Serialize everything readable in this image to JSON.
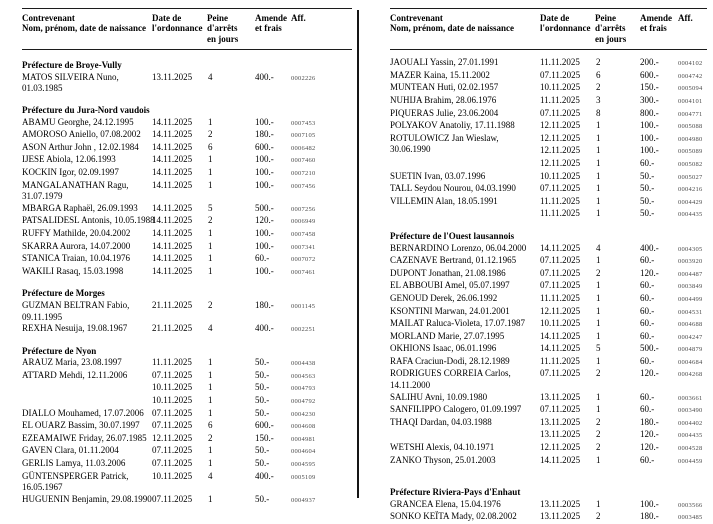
{
  "document": {
    "header": {
      "col_contrevenant_line1": "Contrevenant",
      "col_contrevenant_line2": "Nom, prénom, date de naissance",
      "col_date_line1": "Date de",
      "col_date_line2": "l'ordonnance",
      "col_peine_line1": "Peine",
      "col_peine_line2": "d'arrêts",
      "col_peine_line3": "en jours",
      "col_amende_line1": "Amende",
      "col_amende_line2": "et frais",
      "col_aff": "Aff."
    },
    "pages": [
      {
        "blocks": [
          {
            "title": "Préfecture de Broye-Vully",
            "rows": [
              {
                "name": "MATOS SILVEIRA Nuno,",
                "name2": "01.03.1985",
                "entries": [
                  {
                    "date": "13.11.2025",
                    "days": "4",
                    "amount": "400.-",
                    "aff": "0002226"
                  }
                ]
              }
            ]
          },
          {
            "title": "Préfecture du Jura-Nord vaudois",
            "rows": [
              {
                "name": "ABAMU Georghe, 24.12.1995",
                "entries": [
                  {
                    "date": "14.11.2025",
                    "days": "1",
                    "amount": "100.-",
                    "aff": "0007453"
                  }
                ]
              },
              {
                "name": "AMOROSO Aniello, 07.08.2002",
                "entries": [
                  {
                    "date": "14.11.2025",
                    "days": "2",
                    "amount": "180.-",
                    "aff": "0007105"
                  }
                ]
              },
              {
                "name": "ASON Arthur John , 12.02.1984",
                "entries": [
                  {
                    "date": "14.11.2025",
                    "days": "6",
                    "amount": "600.-",
                    "aff": "0006482"
                  }
                ]
              },
              {
                "name": "IJESE Abiola, 12.06.1993",
                "entries": [
                  {
                    "date": "14.11.2025",
                    "days": "1",
                    "amount": "100.-",
                    "aff": "0007460"
                  }
                ]
              },
              {
                "name": "KOCKIN Igor, 02.09.1997",
                "entries": [
                  {
                    "date": "14.11.2025",
                    "days": "1",
                    "amount": "100.-",
                    "aff": "0007210"
                  }
                ]
              },
              {
                "name": "MANGALANATHAN Ragu,",
                "name2": "31.07.1979",
                "entries": [
                  {
                    "date": "14.11.2025",
                    "days": "1",
                    "amount": "100.-",
                    "aff": "0007456"
                  }
                ]
              },
              {
                "name": "MBARGA Raphaël, 26.09.1993",
                "entries": [
                  {
                    "date": "14.11.2025",
                    "days": "5",
                    "amount": "500.-",
                    "aff": "0007256"
                  }
                ]
              },
              {
                "name": "PATSALIDESL Antonis, 10.05.1988",
                "entries": [
                  {
                    "date": "14.11.2025",
                    "days": "2",
                    "amount": "120.-",
                    "aff": "0006949"
                  }
                ]
              },
              {
                "name": "RUFFY Mathilde, 20.04.2002",
                "entries": [
                  {
                    "date": "14.11.2025",
                    "days": "1",
                    "amount": "100.-",
                    "aff": "0007458"
                  }
                ]
              },
              {
                "name": "SKARRA Aurora, 14.07.2000",
                "entries": [
                  {
                    "date": "14.11.2025",
                    "days": "1",
                    "amount": "100.-",
                    "aff": "0007341"
                  }
                ]
              },
              {
                "name": "STANICA Traian, 10.04.1976",
                "entries": [
                  {
                    "date": "14.11.2025",
                    "days": "1",
                    "amount": "60.-",
                    "aff": "0007072"
                  }
                ]
              },
              {
                "name": "WAKILI Rasaq, 15.03.1998",
                "entries": [
                  {
                    "date": "14.11.2025",
                    "days": "1",
                    "amount": "100.-",
                    "aff": "0007461"
                  }
                ]
              }
            ]
          },
          {
            "title": "Préfecture de Morges",
            "rows": [
              {
                "name": "GUZMAN BELTRAN Fabio,",
                "name2": "09.11.1995",
                "entries": [
                  {
                    "date": "21.11.2025",
                    "days": "2",
                    "amount": "180.-",
                    "aff": "0001145"
                  }
                ]
              },
              {
                "name": "REXHA Nesuija, 19.08.1967",
                "entries": [
                  {
                    "date": "21.11.2025",
                    "days": "4",
                    "amount": "400.-",
                    "aff": "0002251"
                  }
                ]
              }
            ]
          },
          {
            "title": "Préfecture de Nyon",
            "rows": [
              {
                "name": "ARAUZ Maria, 23.08.1997",
                "entries": [
                  {
                    "date": "11.11.2025",
                    "days": "1",
                    "amount": "50.-",
                    "aff": "0004438"
                  }
                ]
              },
              {
                "name": "ATTARD Mehdi, 12.11.2006",
                "entries": [
                  {
                    "date": "07.11.2025",
                    "days": "1",
                    "amount": "50.-",
                    "aff": "0004563"
                  },
                  {
                    "date": "10.11.2025",
                    "days": "1",
                    "amount": "50.-",
                    "aff": "0004793"
                  },
                  {
                    "date": "10.11.2025",
                    "days": "1",
                    "amount": "50.-",
                    "aff": "0004792"
                  }
                ]
              },
              {
                "name": "DIALLO Mouhamed, 17.07.2006",
                "entries": [
                  {
                    "date": "07.11.2025",
                    "days": "1",
                    "amount": "50.-",
                    "aff": "0004230"
                  }
                ]
              },
              {
                "name": "EL OUARZ Bassim, 30.07.1997",
                "entries": [
                  {
                    "date": "07.11.2025",
                    "days": "6",
                    "amount": "600.-",
                    "aff": "0004608"
                  }
                ]
              },
              {
                "name": "EZEAMAIWE Friday, 26.07.1985",
                "entries": [
                  {
                    "date": "12.11.2025",
                    "days": "2",
                    "amount": "150.-",
                    "aff": "0004981"
                  }
                ]
              },
              {
                "name": "GAVEN Clara, 01.11.2004",
                "entries": [
                  {
                    "date": "07.11.2025",
                    "days": "1",
                    "amount": "50.-",
                    "aff": "0004604"
                  }
                ]
              },
              {
                "name": "GERLIS Lamya, 11.03.2006",
                "entries": [
                  {
                    "date": "07.11.2025",
                    "days": "1",
                    "amount": "50.-",
                    "aff": "0004595"
                  }
                ]
              },
              {
                "name": "GÜNTENSPERGER Patrick,",
                "name2": "16.05.1967",
                "entries": [
                  {
                    "date": "10.11.2025",
                    "days": "4",
                    "amount": "400.-",
                    "aff": "0005109"
                  }
                ]
              },
              {
                "name": "HUGUENIN Benjamin, 29.08.1990",
                "entries": [
                  {
                    "date": "07.11.2025",
                    "days": "1",
                    "amount": "50.-",
                    "aff": "0004937"
                  }
                ]
              }
            ]
          }
        ]
      },
      {
        "blocks": [
          {
            "title": "",
            "rows": [
              {
                "name": "JAOUALI Yassin, 27.01.1991",
                "entries": [
                  {
                    "date": "11.11.2025",
                    "days": "2",
                    "amount": "200.-",
                    "aff": "0004102"
                  }
                ]
              },
              {
                "name": "MAZER Kaina, 15.11.2002",
                "entries": [
                  {
                    "date": "07.11.2025",
                    "days": "6",
                    "amount": "600.-",
                    "aff": "0004742"
                  }
                ]
              },
              {
                "name": "MUNTEAN Huti, 02.02.1957",
                "entries": [
                  {
                    "date": "10.11.2025",
                    "days": "2",
                    "amount": "150.-",
                    "aff": "0005094"
                  }
                ]
              },
              {
                "name": "NUHIJA Brahim, 28.06.1976",
                "entries": [
                  {
                    "date": "11.11.2025",
                    "days": "3",
                    "amount": "300.-",
                    "aff": "0004101"
                  }
                ]
              },
              {
                "name": "PIQUERAS Julie, 23.06.2004",
                "entries": [
                  {
                    "date": "07.11.2025",
                    "days": "8",
                    "amount": "800.-",
                    "aff": "0004771"
                  }
                ]
              },
              {
                "name": "POLYAKOV Anatoliy, 17.11.1988",
                "entries": [
                  {
                    "date": "12.11.2025",
                    "days": "1",
                    "amount": "100.-",
                    "aff": "0005088"
                  }
                ]
              },
              {
                "name": "ROTULOWICZ Jan Wieslaw,",
                "name2": "30.06.1990",
                "entries": [
                  {
                    "date": "12.11.2025",
                    "days": "1",
                    "amount": "100.-",
                    "aff": "0004980"
                  },
                  {
                    "date": "12.11.2025",
                    "days": "1",
                    "amount": "100.-",
                    "aff": "0005089"
                  },
                  {
                    "date": "12.11.2025",
                    "days": "1",
                    "amount": "60.-",
                    "aff": "0005082"
                  }
                ]
              },
              {
                "name": "SUETIN Ivan, 03.07.1996",
                "entries": [
                  {
                    "date": "10.11.2025",
                    "days": "1",
                    "amount": "50.-",
                    "aff": "0005027"
                  }
                ]
              },
              {
                "name": "TALL Seydou Nourou, 04.03.1990",
                "entries": [
                  {
                    "date": "07.11.2025",
                    "days": "1",
                    "amount": "50.-",
                    "aff": "0004216"
                  }
                ]
              },
              {
                "name": "VILLEMIN Alan, 18.05.1991",
                "entries": [
                  {
                    "date": "11.11.2025",
                    "days": "1",
                    "amount": "50.-",
                    "aff": "0004429"
                  },
                  {
                    "date": "11.11.2025",
                    "days": "1",
                    "amount": "50.-",
                    "aff": "0004435"
                  }
                ]
              }
            ]
          },
          {
            "title": "Préfecture de l'Ouest lausannois",
            "rows": [
              {
                "name": "BERNARDINO Lorenzo, 06.04.2000",
                "entries": [
                  {
                    "date": "14.11.2025",
                    "days": "4",
                    "amount": "400.-",
                    "aff": "0004305"
                  }
                ]
              },
              {
                "name": "CAZENAVE Bertrand, 01.12.1965",
                "entries": [
                  {
                    "date": "07.11.2025",
                    "days": "1",
                    "amount": "60.-",
                    "aff": "0003920"
                  }
                ]
              },
              {
                "name": "DUPONT Jonathan, 21.08.1986",
                "entries": [
                  {
                    "date": "07.11.2025",
                    "days": "2",
                    "amount": "120.-",
                    "aff": "0004487"
                  }
                ]
              },
              {
                "name": "EL ABBOUBI Amel, 05.07.1997",
                "entries": [
                  {
                    "date": "07.11.2025",
                    "days": "1",
                    "amount": "60.-",
                    "aff": "0003849"
                  }
                ]
              },
              {
                "name": "GENOUD Derek, 26.06.1992",
                "entries": [
                  {
                    "date": "11.11.2025",
                    "days": "1",
                    "amount": "60.-",
                    "aff": "0004499"
                  }
                ]
              },
              {
                "name": "KSONTINI Marwan, 24.01.2001",
                "entries": [
                  {
                    "date": "12.11.2025",
                    "days": "1",
                    "amount": "60.-",
                    "aff": "0004531"
                  }
                ]
              },
              {
                "name": "MAILAT Raluca-Violeta, 17.07.1987",
                "entries": [
                  {
                    "date": "10.11.2025",
                    "days": "1",
                    "amount": "60.-",
                    "aff": "0004688"
                  }
                ]
              },
              {
                "name": "MORLAND Marie, 27.07.1995",
                "entries": [
                  {
                    "date": "14.11.2025",
                    "days": "1",
                    "amount": "60.-",
                    "aff": "0004247"
                  }
                ]
              },
              {
                "name": "OKHIONS Isaac, 06.01.1996",
                "entries": [
                  {
                    "date": "14.11.2025",
                    "days": "5",
                    "amount": "500.-",
                    "aff": "0004879"
                  }
                ]
              },
              {
                "name": "RAFA Craciun-Dodi, 28.12.1989",
                "entries": [
                  {
                    "date": "11.11.2025",
                    "days": "1",
                    "amount": "60.-",
                    "aff": "0004684"
                  }
                ]
              },
              {
                "name": "RODRIGUES CORREIA Carlos,",
                "name2": "14.11.2000",
                "entries": [
                  {
                    "date": "07.11.2025",
                    "days": "2",
                    "amount": "120.-",
                    "aff": "0004268"
                  }
                ]
              },
              {
                "name": "SALIHU Avni, 10.09.1980",
                "entries": [
                  {
                    "date": "13.11.2025",
                    "days": "1",
                    "amount": "60.-",
                    "aff": "0003661"
                  }
                ]
              },
              {
                "name": "SANFILIPPO Calogero, 01.09.1997",
                "entries": [
                  {
                    "date": "07.11.2025",
                    "days": "1",
                    "amount": "60.-",
                    "aff": "0003490"
                  }
                ]
              },
              {
                "name": "THAQI Dardan, 04.03.1988",
                "entries": [
                  {
                    "date": "13.11.2025",
                    "days": "2",
                    "amount": "180.-",
                    "aff": "0004402"
                  },
                  {
                    "date": "13.11.2025",
                    "days": "2",
                    "amount": "120.-",
                    "aff": "0004435"
                  }
                ]
              },
              {
                "name": "WETSHI Alexis, 04.10.1971",
                "entries": [
                  {
                    "date": "12.11.2025",
                    "days": "2",
                    "amount": "120.-",
                    "aff": "0004528"
                  }
                ]
              },
              {
                "name": "ZANKO Thyson, 25.01.2003",
                "entries": [
                  {
                    "date": "14.11.2025",
                    "days": "1",
                    "amount": "60.-",
                    "aff": "0004459"
                  }
                ]
              }
            ]
          },
          {
            "title": "Préfecture Riviera-Pays d'Enhaut",
            "rows": [
              {
                "name": "GRANCEA Elena, 15.04.1976",
                "entries": [
                  {
                    "date": "13.11.2025",
                    "days": "1",
                    "amount": "100.-",
                    "aff": "0003566"
                  }
                ]
              },
              {
                "name": "SONKO KEÏTA Mady, 02.08.2002",
                "entries": [
                  {
                    "date": "13.11.2025",
                    "days": "2",
                    "amount": "180.-",
                    "aff": "0003485"
                  }
                ]
              }
            ]
          }
        ]
      }
    ]
  }
}
